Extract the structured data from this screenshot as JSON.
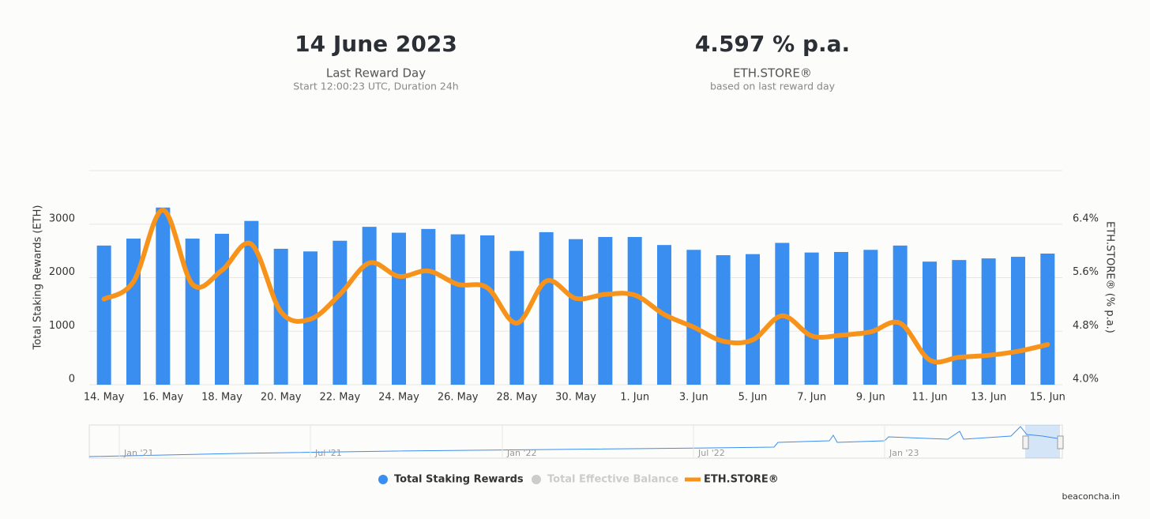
{
  "header": {
    "date": "14 June 2023",
    "date_label": "Last Reward Day",
    "date_sub": "Start 12:00:23 UTC, Duration 24h",
    "apr": "4.597 % p.a.",
    "apr_label": "ETH.STORE®",
    "apr_sub": "based on last reward day"
  },
  "footer": "beaconcha.in",
  "chart_data": {
    "type": "bar-line",
    "categories": [
      "14. May",
      null,
      "16. May",
      null,
      "18. May",
      null,
      "20. May",
      null,
      "22. May",
      null,
      "24. May",
      null,
      "26. May",
      null,
      "28. May",
      null,
      "30. May",
      null,
      "1. Jun",
      null,
      "3. Jun",
      null,
      "5. Jun",
      null,
      "7. Jun",
      null,
      "9. Jun",
      null,
      "11. Jun",
      null,
      "13. Jun",
      null,
      "15. Jun"
    ],
    "y_label": "Total Staking Rewards (ETH)",
    "y2_label": "ETH.STORE® (% p.a.)",
    "ylim": [
      0,
      4000
    ],
    "yticks": [
      0,
      1000,
      2000,
      3000
    ],
    "y2lim": [
      4.0,
      7.2
    ],
    "y2ticks": [
      {
        "value": 4.0,
        "label": "4.0%"
      },
      {
        "value": 4.8,
        "label": "4.8%"
      },
      {
        "value": 5.6,
        "label": "5.6%"
      },
      {
        "value": 6.4,
        "label": "6.4%"
      }
    ],
    "grid": true,
    "series": [
      {
        "name": "Total Staking Rewards",
        "type": "bar",
        "color": "#3a8ef0",
        "values": [
          2600,
          2730,
          3310,
          2730,
          2820,
          3060,
          2540,
          2490,
          2690,
          2950,
          2840,
          2910,
          2810,
          2790,
          2500,
          2850,
          2720,
          2760,
          2760,
          2610,
          2520,
          2420,
          2440,
          2650,
          2470,
          2480,
          2520,
          2600,
          2300,
          2330,
          2360,
          2390,
          2450
        ]
      },
      {
        "name": "Total Effective Balance",
        "type": "bar",
        "color": "#cccccc",
        "visible": false
      },
      {
        "name": "ETH.STORE®",
        "type": "line",
        "axis": "y2",
        "color": "#f7931a",
        "values": [
          5.28,
          5.54,
          6.61,
          5.5,
          5.71,
          6.1,
          5.09,
          4.98,
          5.35,
          5.82,
          5.62,
          5.7,
          5.5,
          5.45,
          4.92,
          5.55,
          5.29,
          5.35,
          5.34,
          5.05,
          4.86,
          4.65,
          4.67,
          5.03,
          4.73,
          4.74,
          4.79,
          4.92,
          4.37,
          4.41,
          4.44,
          4.5,
          4.6
        ]
      }
    ],
    "navigator_labels": [
      "Jan '21",
      "Jul '21",
      "Jan '22",
      "Jul '22",
      "Jan '23"
    ]
  }
}
